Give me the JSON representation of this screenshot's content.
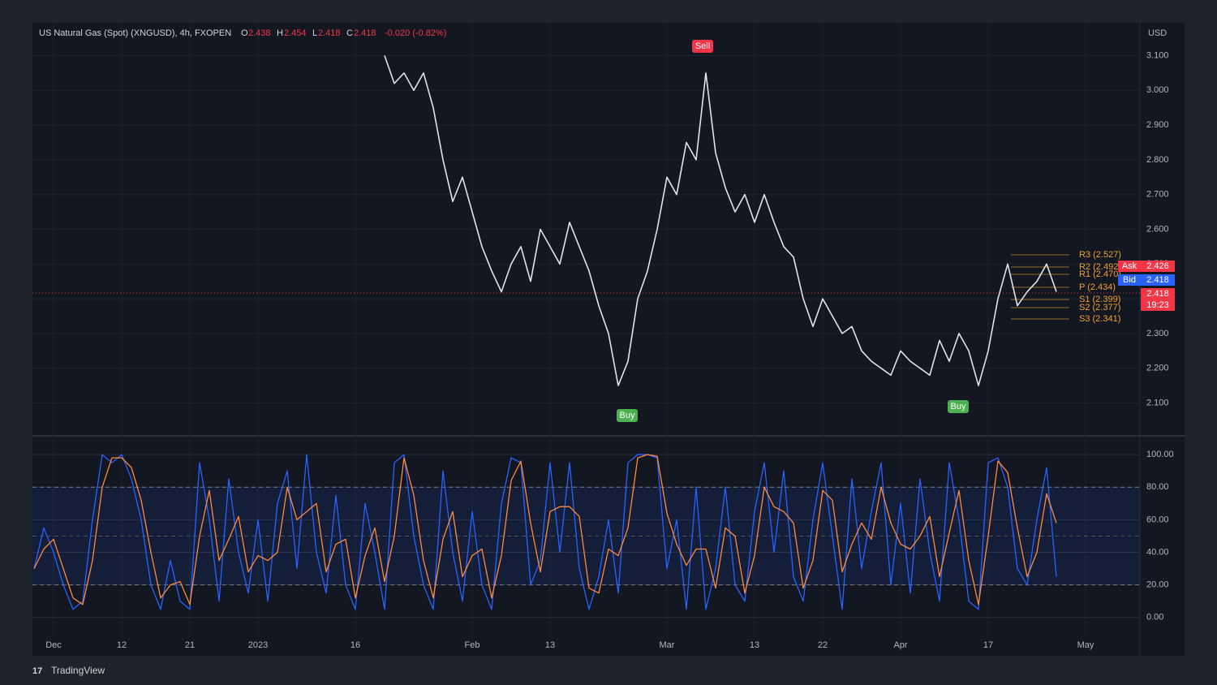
{
  "header": {
    "symbol": "US Natural Gas (Spot) (XNGUSD), 4h, FXOPEN",
    "open": "2.438",
    "high": "2.454",
    "low": "2.418",
    "close": "2.418",
    "change": "-0.020 (-0.82%)",
    "currency": "USD"
  },
  "footer": {
    "brand": "TradingView"
  },
  "annotations": [
    "Sell",
    "Buy",
    "Buy"
  ],
  "pivots": [
    "R3 (2.527)",
    "R2 (2.492)",
    "R1 (2.470)",
    "P (2.434)",
    "S1 (2.399)",
    "S2 (2.377)",
    "S3 (2.341)"
  ],
  "price_tags": {
    "ask_label": "Ask",
    "ask": "2.426",
    "bid_label": "Bid",
    "bid": "2.418",
    "last": "2.418",
    "countdown": "19:23"
  },
  "chart_data": [
    {
      "type": "line",
      "color": "#e0e3eb",
      "values": [
        null,
        null,
        null,
        null,
        null,
        null,
        null,
        null,
        null,
        null,
        null,
        null,
        null,
        null,
        null,
        null,
        null,
        null,
        null,
        null,
        null,
        null,
        null,
        null,
        null,
        null,
        null,
        null,
        null,
        null,
        null,
        null,
        null,
        null,
        null,
        null,
        3.1,
        3.02,
        3.05,
        3.0,
        3.05,
        2.95,
        2.8,
        2.68,
        2.75,
        2.65,
        2.55,
        2.48,
        2.42,
        2.5,
        2.55,
        2.45,
        2.6,
        2.55,
        2.5,
        2.62,
        2.55,
        2.48,
        2.38,
        2.3,
        2.15,
        2.22,
        2.4,
        2.48,
        2.6,
        2.75,
        2.7,
        2.85,
        2.8,
        3.05,
        2.82,
        2.72,
        2.65,
        2.7,
        2.62,
        2.7,
        2.62,
        2.55,
        2.52,
        2.4,
        2.32,
        2.4,
        2.35,
        2.3,
        2.32,
        2.25,
        2.22,
        2.2,
        2.18,
        2.25,
        2.22,
        2.2,
        2.18,
        2.28,
        2.22,
        2.3,
        2.25,
        2.15,
        2.25,
        2.4,
        2.5,
        2.38,
        2.42,
        2.45,
        2.5,
        2.42,
        null,
        null,
        null,
        null,
        null,
        null,
        null,
        null
      ],
      "ylim": [
        2.01,
        3.19
      ],
      "yticks": [
        {
          "value": 2.1,
          "label": "2.100"
        },
        {
          "value": 2.2,
          "label": "2.200"
        },
        {
          "value": 2.3,
          "label": "2.300"
        },
        {
          "value": 2.4,
          "label": "2.400"
        },
        {
          "value": 2.5,
          "label": "2.500"
        },
        {
          "value": 2.6,
          "label": "2.600"
        },
        {
          "value": 2.7,
          "label": "2.700"
        },
        {
          "value": 2.8,
          "label": "2.800"
        },
        {
          "value": 2.9,
          "label": "2.900"
        },
        {
          "value": 3.0,
          "label": "3.000"
        },
        {
          "value": 3.1,
          "label": "3.100"
        }
      ],
      "grid": true
    },
    {
      "type": "line",
      "categories": [
        null,
        null,
        "Dec",
        null,
        null,
        null,
        null,
        null,
        null,
        "12",
        null,
        null,
        null,
        null,
        null,
        null,
        "21",
        null,
        null,
        null,
        null,
        null,
        null,
        "2023",
        null,
        null,
        null,
        null,
        null,
        null,
        null,
        null,
        null,
        "16",
        null,
        null,
        null,
        null,
        null,
        null,
        null,
        null,
        null,
        null,
        null,
        "Feb",
        null,
        null,
        null,
        null,
        null,
        null,
        null,
        "13",
        null,
        null,
        null,
        null,
        null,
        null,
        null,
        null,
        null,
        null,
        null,
        "Mar",
        null,
        null,
        null,
        null,
        null,
        null,
        null,
        null,
        "13",
        null,
        null,
        null,
        null,
        null,
        null,
        "22",
        null,
        null,
        null,
        null,
        null,
        null,
        null,
        "Apr",
        null,
        null,
        null,
        null,
        null,
        null,
        null,
        null,
        "17",
        null,
        null,
        null,
        null,
        null,
        null,
        null,
        null,
        null,
        "May",
        null,
        null,
        null,
        null,
        null
      ],
      "series": [
        {
          "color": "#2962ff",
          "values": [
            30,
            55,
            40,
            20,
            5,
            10,
            60,
            100,
            95,
            100,
            85,
            60,
            20,
            5,
            35,
            10,
            5,
            95,
            60,
            10,
            85,
            40,
            15,
            60,
            10,
            70,
            90,
            30,
            100,
            40,
            15,
            75,
            20,
            5,
            70,
            40,
            5,
            95,
            100,
            50,
            20,
            5,
            90,
            40,
            10,
            65,
            20,
            5,
            70,
            98,
            95,
            20,
            35,
            95,
            40,
            95,
            30,
            5,
            25,
            60,
            15,
            95,
            100,
            100,
            98,
            30,
            60,
            5,
            80,
            5,
            30,
            80,
            20,
            10,
            65,
            95,
            40,
            90,
            25,
            10,
            60,
            95,
            50,
            5,
            85,
            30,
            65,
            95,
            20,
            70,
            15,
            85,
            40,
            10,
            95,
            60,
            10,
            5,
            95,
            98,
            80,
            30,
            20,
            60,
            92,
            25,
            null,
            null,
            null,
            null,
            null,
            null,
            null,
            null
          ]
        },
        {
          "color": "#ff8a3d",
          "values": [
            30,
            42,
            48,
            30,
            12,
            8,
            35,
            80,
            98,
            98,
            92,
            72,
            40,
            12,
            20,
            22,
            8,
            50,
            78,
            35,
            48,
            62,
            28,
            38,
            35,
            40,
            80,
            60,
            65,
            70,
            28,
            45,
            48,
            12,
            38,
            55,
            22,
            50,
            98,
            75,
            35,
            12,
            48,
            65,
            25,
            38,
            42,
            12,
            38,
            84,
            96,
            58,
            28,
            65,
            68,
            68,
            62,
            18,
            15,
            42,
            38,
            55,
            98,
            100,
            99,
            64,
            45,
            32,
            42,
            42,
            18,
            55,
            50,
            15,
            38,
            80,
            68,
            65,
            58,
            18,
            35,
            78,
            72,
            28,
            45,
            58,
            48,
            80,
            58,
            45,
            42,
            50,
            62,
            25,
            52,
            78,
            35,
            8,
            50,
            96,
            89,
            55,
            25,
            40,
            76,
            58,
            null,
            null,
            null,
            null,
            null,
            null,
            null,
            null
          ]
        }
      ],
      "ylim": [
        -22,
        110
      ],
      "yticks": [
        {
          "value": 0,
          "label": "0.00"
        },
        {
          "value": 20,
          "label": "20.00"
        },
        {
          "value": 40,
          "label": "40.00"
        },
        {
          "value": 60,
          "label": "60.00"
        },
        {
          "value": 80,
          "label": "80.00"
        },
        {
          "value": 100,
          "label": "100.00"
        }
      ],
      "band": [
        20,
        80
      ],
      "grid": true
    }
  ]
}
